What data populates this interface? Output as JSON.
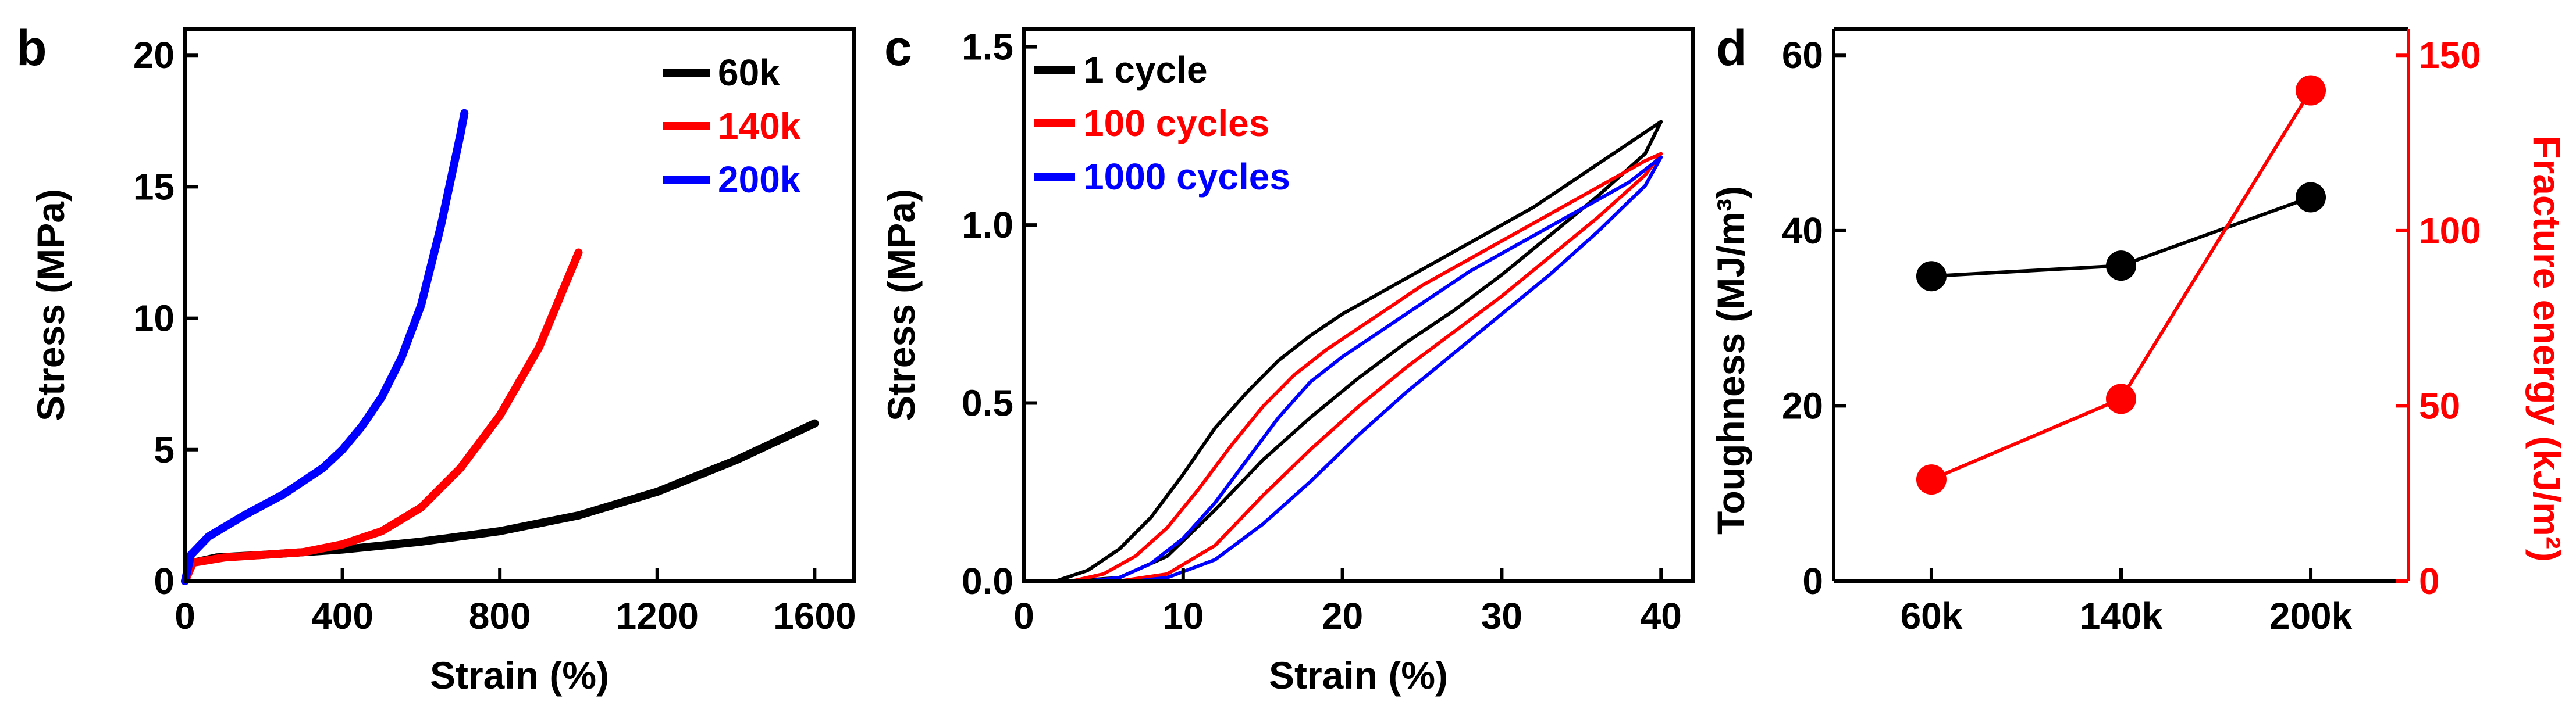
{
  "chart_data": [
    {
      "panel": "b",
      "type": "line",
      "xlabel": "Strain (%)",
      "ylabel": "Stress (MPa)",
      "xlim": [
        0,
        1700
      ],
      "ylim": [
        0,
        21
      ],
      "xticks": [
        "0",
        "400",
        "800",
        "1200",
        "1600"
      ],
      "xtick_values": [
        0,
        400,
        800,
        1200,
        1600
      ],
      "yticks": [
        "0",
        "5",
        "10",
        "15",
        "20"
      ],
      "ytick_values": [
        0,
        5,
        10,
        15,
        20
      ],
      "legend_position": "top-right",
      "series": [
        {
          "name": "60k",
          "color": "#000000",
          "points": [
            [
              0,
              0
            ],
            [
              20,
              0.7
            ],
            [
              80,
              0.9
            ],
            [
              200,
              1.0
            ],
            [
              400,
              1.2
            ],
            [
              600,
              1.5
            ],
            [
              800,
              1.9
            ],
            [
              1000,
              2.5
            ],
            [
              1200,
              3.4
            ],
            [
              1400,
              4.6
            ],
            [
              1600,
              6.0
            ]
          ]
        },
        {
          "name": "140k",
          "color": "#ff0000",
          "points": [
            [
              0,
              0
            ],
            [
              20,
              0.7
            ],
            [
              100,
              0.9
            ],
            [
              200,
              1.0
            ],
            [
              300,
              1.1
            ],
            [
              400,
              1.4
            ],
            [
              500,
              1.9
            ],
            [
              600,
              2.8
            ],
            [
              700,
              4.3
            ],
            [
              800,
              6.3
            ],
            [
              900,
              8.9
            ],
            [
              1000,
              12.5
            ]
          ]
        },
        {
          "name": "200k",
          "color": "#0000ff",
          "points": [
            [
              0,
              0
            ],
            [
              15,
              1.0
            ],
            [
              60,
              1.7
            ],
            [
              150,
              2.5
            ],
            [
              250,
              3.3
            ],
            [
              350,
              4.3
            ],
            [
              400,
              5.0
            ],
            [
              450,
              5.9
            ],
            [
              500,
              7.0
            ],
            [
              550,
              8.5
            ],
            [
              600,
              10.5
            ],
            [
              650,
              13.5
            ],
            [
              700,
              17.0
            ],
            [
              710,
              17.8
            ]
          ]
        }
      ]
    },
    {
      "panel": "c",
      "type": "line",
      "xlabel": "Strain (%)",
      "ylabel": "Stress (MPa)",
      "xlim": [
        0,
        42
      ],
      "ylim": [
        0,
        1.55
      ],
      "xticks": [
        "0",
        "10",
        "20",
        "30",
        "40"
      ],
      "xtick_values": [
        0,
        10,
        20,
        30,
        40
      ],
      "yticks": [
        "0.0",
        "0.5",
        "1.0",
        "1.5"
      ],
      "ytick_values": [
        0,
        0.5,
        1.0,
        1.5
      ],
      "legend_position": "top-left",
      "series": [
        {
          "name": "1 cycle",
          "color": "#000000",
          "points": [
            [
              0,
              0
            ],
            [
              2,
              0
            ],
            [
              4,
              0.03
            ],
            [
              6,
              0.09
            ],
            [
              8,
              0.18
            ],
            [
              10,
              0.3
            ],
            [
              12,
              0.43
            ],
            [
              14,
              0.53
            ],
            [
              16,
              0.62
            ],
            [
              18,
              0.69
            ],
            [
              20,
              0.75
            ],
            [
              22,
              0.8
            ],
            [
              24,
              0.85
            ],
            [
              26,
              0.9
            ],
            [
              28,
              0.95
            ],
            [
              30,
              1.0
            ],
            [
              32,
              1.05
            ],
            [
              34,
              1.11
            ],
            [
              36,
              1.17
            ],
            [
              38,
              1.23
            ],
            [
              40,
              1.29
            ],
            [
              39,
              1.2
            ],
            [
              36,
              1.08
            ],
            [
              33,
              0.97
            ],
            [
              30,
              0.86
            ],
            [
              27,
              0.76
            ],
            [
              24,
              0.67
            ],
            [
              21,
              0.57
            ],
            [
              18,
              0.46
            ],
            [
              15,
              0.34
            ],
            [
              12,
              0.2
            ],
            [
              9,
              0.07
            ],
            [
              6,
              0.01
            ],
            [
              3,
              0
            ],
            [
              0,
              0
            ]
          ]
        },
        {
          "name": "100 cycles",
          "color": "#ff0000",
          "points": [
            [
              0,
              0
            ],
            [
              3,
              0
            ],
            [
              5,
              0.02
            ],
            [
              7,
              0.07
            ],
            [
              9,
              0.15
            ],
            [
              11,
              0.26
            ],
            [
              13,
              0.38
            ],
            [
              15,
              0.49
            ],
            [
              17,
              0.58
            ],
            [
              19,
              0.65
            ],
            [
              21,
              0.71
            ],
            [
              23,
              0.77
            ],
            [
              25,
              0.83
            ],
            [
              27,
              0.88
            ],
            [
              29,
              0.93
            ],
            [
              31,
              0.98
            ],
            [
              33,
              1.03
            ],
            [
              35,
              1.08
            ],
            [
              37,
              1.13
            ],
            [
              39,
              1.18
            ],
            [
              40,
              1.2
            ],
            [
              39,
              1.14
            ],
            [
              36,
              1.02
            ],
            [
              33,
              0.91
            ],
            [
              30,
              0.8
            ],
            [
              27,
              0.7
            ],
            [
              24,
              0.6
            ],
            [
              21,
              0.49
            ],
            [
              18,
              0.37
            ],
            [
              15,
              0.24
            ],
            [
              12,
              0.1
            ],
            [
              9,
              0.02
            ],
            [
              6,
              0
            ],
            [
              0,
              0
            ]
          ]
        },
        {
          "name": "1000 cycles",
          "color": "#0000ff",
          "points": [
            [
              0,
              0
            ],
            [
              4,
              0
            ],
            [
              6,
              0.01
            ],
            [
              8,
              0.05
            ],
            [
              10,
              0.12
            ],
            [
              12,
              0.22
            ],
            [
              14,
              0.34
            ],
            [
              16,
              0.46
            ],
            [
              18,
              0.56
            ],
            [
              20,
              0.63
            ],
            [
              22,
              0.69
            ],
            [
              24,
              0.75
            ],
            [
              26,
              0.81
            ],
            [
              28,
              0.87
            ],
            [
              30,
              0.92
            ],
            [
              32,
              0.97
            ],
            [
              34,
              1.02
            ],
            [
              36,
              1.07
            ],
            [
              38,
              1.12
            ],
            [
              40,
              1.19
            ],
            [
              39,
              1.11
            ],
            [
              36,
              0.98
            ],
            [
              33,
              0.86
            ],
            [
              30,
              0.75
            ],
            [
              27,
              0.64
            ],
            [
              24,
              0.53
            ],
            [
              21,
              0.41
            ],
            [
              18,
              0.28
            ],
            [
              15,
              0.16
            ],
            [
              12,
              0.06
            ],
            [
              9,
              0.01
            ],
            [
              7,
              0
            ],
            [
              0,
              0
            ]
          ]
        }
      ]
    },
    {
      "panel": "d",
      "type": "line",
      "categories": [
        "60k",
        "140k",
        "200k"
      ],
      "ylabel": "Toughness (MJ/m³)",
      "y2label": "Fracture energy (kJ/m²)",
      "ylim": [
        0,
        63
      ],
      "y2lim": [
        0,
        157.5
      ],
      "yticks": [
        "0",
        "20",
        "40",
        "60"
      ],
      "ytick_values": [
        0,
        20,
        40,
        60
      ],
      "y2ticks": [
        "0",
        "50",
        "100",
        "150"
      ],
      "y2tick_values": [
        0,
        50,
        100,
        150
      ],
      "left_axis_color": "#000000",
      "right_axis_color": "#ff0000",
      "series": [
        {
          "axis": "left",
          "color": "#000000",
          "values": [
            34.8,
            36.0,
            43.8
          ]
        },
        {
          "axis": "right",
          "color": "#ff0000",
          "values": [
            29,
            52,
            140
          ]
        }
      ]
    }
  ],
  "panel_letters": [
    "b",
    "c",
    "d"
  ]
}
